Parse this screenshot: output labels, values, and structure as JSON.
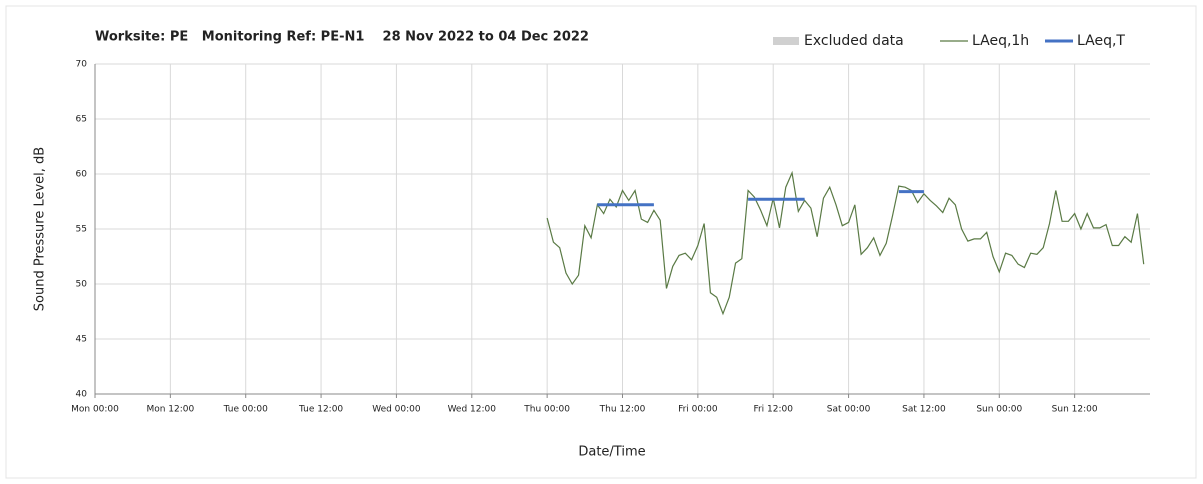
{
  "chart_data": {
    "type": "line",
    "title": "Worksite: PE   Monitoring Ref: PE-N1    28 Nov 2022 to 04 Dec 2022",
    "x_label": "Date/Time",
    "y_label": "Sound Pressure Level, dB",
    "xlim": [
      0,
      168
    ],
    "xticks": [
      {
        "value": 0,
        "label": "Mon 00:00"
      },
      {
        "value": 12,
        "label": "Mon 12:00"
      },
      {
        "value": 24,
        "label": "Tue 00:00"
      },
      {
        "value": 36,
        "label": "Tue 12:00"
      },
      {
        "value": 48,
        "label": "Wed 00:00"
      },
      {
        "value": 60,
        "label": "Wed 12:00"
      },
      {
        "value": 72,
        "label": "Thu 00:00"
      },
      {
        "value": 84,
        "label": "Thu 12:00"
      },
      {
        "value": 96,
        "label": "Fri 00:00"
      },
      {
        "value": 108,
        "label": "Fri 12:00"
      },
      {
        "value": 120,
        "label": "Sat 00:00"
      },
      {
        "value": 132,
        "label": "Sat 12:00"
      },
      {
        "value": 144,
        "label": "Sun 00:00"
      },
      {
        "value": 156,
        "label": "Sun 12:00"
      }
    ],
    "ylim": [
      40,
      70
    ],
    "yticks": [
      40,
      45,
      50,
      55,
      60,
      65,
      70
    ],
    "grid": true,
    "legend": "top-right",
    "series": [
      {
        "name": "Excluded data",
        "color": "#d0d0d0",
        "x": [],
        "values": []
      },
      {
        "name": "LAeq,1h",
        "color": "#5a7a45",
        "x": [
          72,
          73,
          74,
          75,
          76,
          77,
          78,
          79,
          80,
          81,
          82,
          83,
          84,
          85,
          86,
          87,
          88,
          89,
          90,
          91,
          92,
          93,
          94,
          95,
          96,
          97,
          98,
          99,
          100,
          101,
          102,
          103,
          104,
          105,
          106,
          107,
          108,
          109,
          110,
          111,
          112,
          113,
          114,
          115,
          116,
          117,
          118,
          119,
          120,
          121,
          122,
          123,
          124,
          125,
          126,
          127,
          128,
          129,
          130,
          131,
          132,
          133,
          134,
          135,
          136,
          137,
          138,
          139,
          140,
          141,
          142,
          143,
          144,
          145,
          146,
          147,
          148,
          149,
          150,
          151,
          152,
          153,
          154,
          155,
          156,
          157,
          158,
          159,
          160,
          161,
          162,
          163,
          164,
          165,
          166,
          167
        ],
        "values": [
          56.0,
          53.8,
          53.3,
          51.0,
          50.0,
          50.8,
          55.3,
          54.2,
          57.2,
          56.4,
          57.7,
          57.0,
          58.5,
          57.6,
          58.5,
          55.9,
          55.6,
          56.7,
          55.8,
          49.6,
          51.6,
          52.6,
          52.8,
          52.2,
          53.5,
          55.5,
          49.2,
          48.8,
          47.3,
          48.8,
          51.9,
          52.3,
          58.5,
          57.9,
          56.7,
          55.3,
          57.8,
          55.1,
          58.8,
          60.1,
          56.6,
          57.6,
          56.9,
          54.3,
          57.8,
          58.8,
          57.2,
          55.3,
          55.6,
          57.2,
          52.7,
          53.3,
          54.2,
          52.6,
          53.7,
          56.2,
          58.9,
          58.8,
          58.5,
          57.4,
          58.2,
          57.6,
          57.1,
          56.5,
          57.8,
          57.2,
          55.0,
          53.9,
          54.1,
          54.1,
          54.7,
          52.5,
          51.1,
          52.8,
          52.6,
          51.8,
          51.5,
          52.8,
          52.7,
          53.3,
          55.5,
          58.5,
          55.7,
          55.7,
          56.4,
          55.0,
          56.4,
          55.1,
          55.1,
          55.4,
          53.5,
          53.5,
          54.3,
          53.8,
          56.4,
          51.8
        ]
      },
      {
        "name": "LAeq,T",
        "color": "#4472c4",
        "x": [
          80,
          89,
          96,
          104,
          113,
          120,
          128,
          132
        ],
        "values": [
          57.2,
          57.2,
          null,
          57.7,
          57.7,
          null,
          58.4,
          58.4
        ]
      }
    ]
  }
}
